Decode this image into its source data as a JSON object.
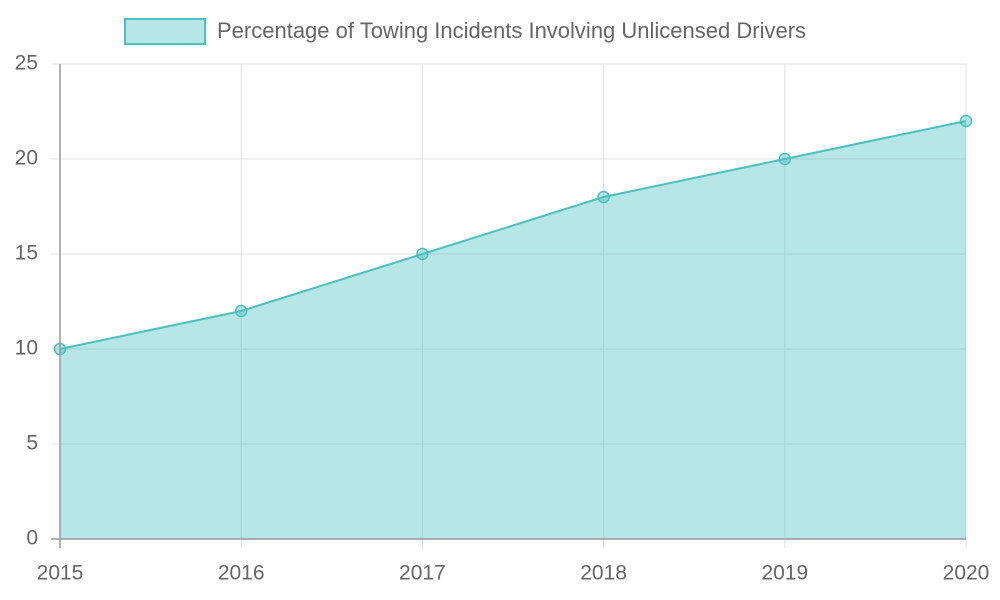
{
  "chart_data": {
    "type": "area",
    "categories": [
      "2015",
      "2016",
      "2017",
      "2018",
      "2019",
      "2020"
    ],
    "series": [
      {
        "name": "Percentage of Towing Incidents Involving Unlicensed Drivers",
        "color": "#4bc0c0",
        "values": [
          10,
          12,
          15,
          18,
          20,
          22
        ]
      }
    ],
    "ylim": [
      0,
      25
    ],
    "yticks": [
      0,
      5,
      10,
      15,
      20,
      25
    ],
    "grid": true,
    "legend": "top"
  }
}
